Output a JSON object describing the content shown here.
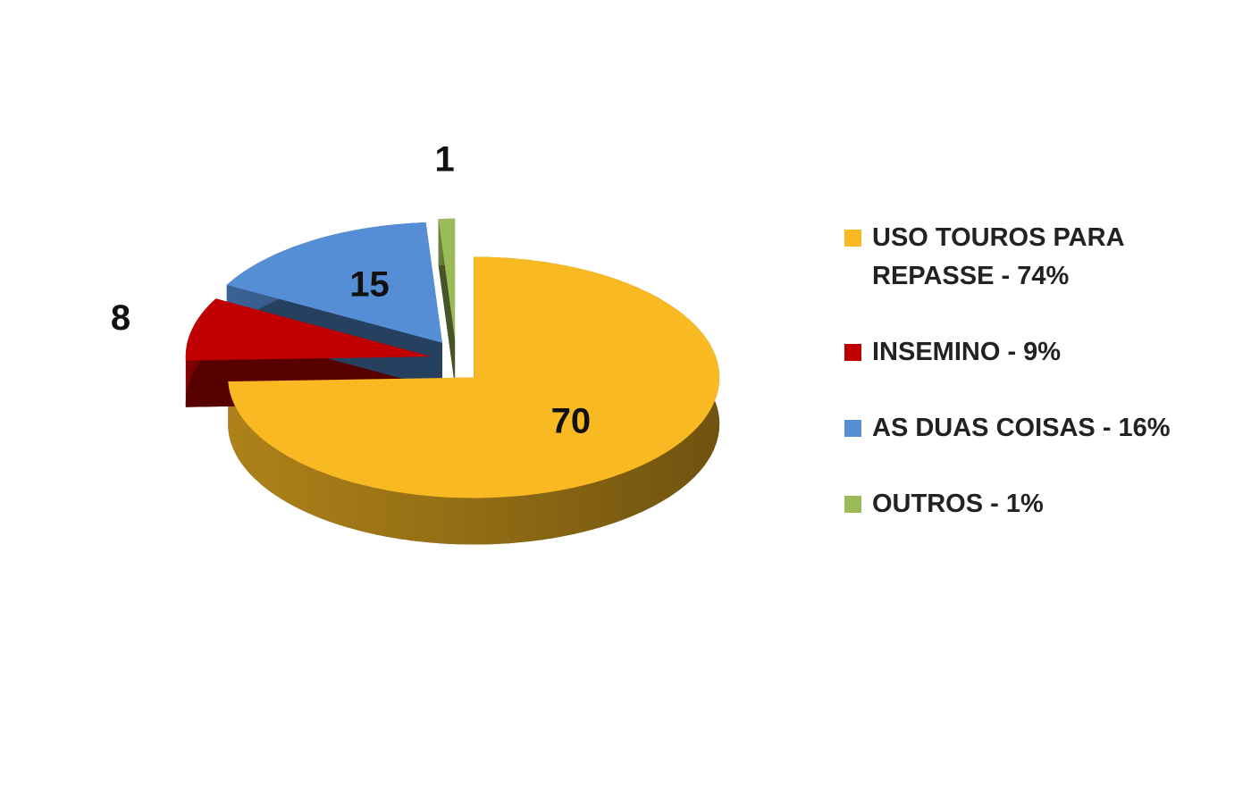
{
  "chart_data": {
    "type": "pie",
    "categories": [
      "USO TOUROS PARA REPASSE - 74%",
      "INSEMINO - 9%",
      "AS DUAS COISAS - 16%",
      "OUTROS - 1%"
    ],
    "values": [
      70,
      8,
      15,
      1
    ],
    "colors": [
      "#f9b923",
      "#c00000",
      "#558ed5",
      "#9bbb59"
    ],
    "legend": "right"
  }
}
